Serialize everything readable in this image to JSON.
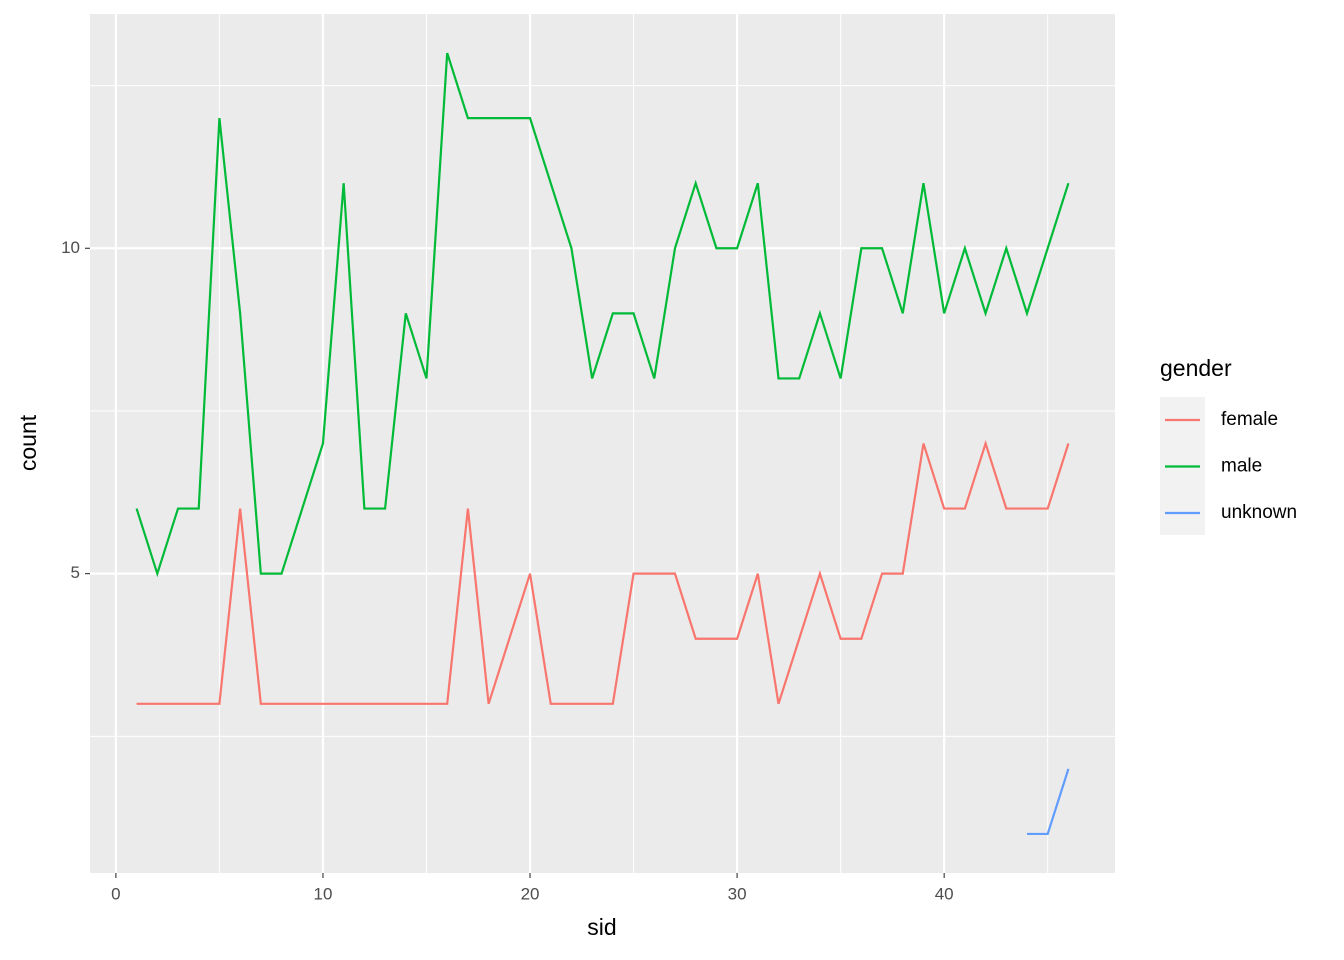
{
  "chart_data": {
    "type": "line",
    "x_label": "sid",
    "y_label": "count",
    "legend_title": "gender",
    "x": [
      1,
      2,
      3,
      4,
      5,
      6,
      7,
      8,
      9,
      10,
      11,
      12,
      13,
      14,
      15,
      16,
      17,
      18,
      19,
      20,
      21,
      22,
      23,
      24,
      25,
      26,
      27,
      28,
      29,
      30,
      31,
      32,
      33,
      34,
      35,
      36,
      37,
      38,
      39,
      40,
      41,
      42,
      43,
      44,
      45,
      46
    ],
    "series": [
      {
        "name": "female",
        "color": "#f8766d",
        "values": [
          3,
          3,
          3,
          3,
          3,
          6,
          3,
          3,
          3,
          3,
          3,
          3,
          3,
          3,
          3,
          3,
          6,
          3,
          4,
          5,
          3,
          3,
          3,
          3,
          5,
          5,
          5,
          4,
          4,
          4,
          5,
          3,
          4,
          5,
          4,
          4,
          5,
          5,
          7,
          6,
          6,
          7,
          6,
          6,
          6,
          7
        ]
      },
      {
        "name": "male",
        "color": "#00ba38",
        "values": [
          6,
          5,
          6,
          6,
          12,
          9,
          5,
          5,
          6,
          7,
          11,
          6,
          6,
          9,
          8,
          13,
          12,
          12,
          12,
          12,
          11,
          10,
          8,
          9,
          9,
          8,
          10,
          11,
          10,
          10,
          11,
          8,
          8,
          9,
          8,
          10,
          10,
          9,
          11,
          9,
          10,
          9,
          10,
          9,
          10,
          11
        ]
      },
      {
        "name": "unknown",
        "color": "#619cff",
        "values": [
          null,
          null,
          null,
          null,
          null,
          null,
          null,
          null,
          null,
          null,
          null,
          null,
          null,
          null,
          null,
          null,
          null,
          null,
          null,
          null,
          null,
          null,
          null,
          null,
          null,
          null,
          null,
          null,
          null,
          null,
          null,
          null,
          null,
          null,
          null,
          null,
          null,
          null,
          null,
          null,
          null,
          null,
          null,
          1,
          1,
          2
        ]
      }
    ],
    "xlim": [
      -1.25,
      48.25
    ],
    "ylim": [
      0.4,
      13.6
    ],
    "xticks": [
      0,
      10,
      20,
      30,
      40
    ],
    "yticks": [
      5,
      10
    ],
    "xminor": [
      5,
      15,
      25,
      35,
      45
    ],
    "yminor": [
      2.5,
      7.5,
      12.5
    ],
    "grid": true,
    "legend": "right"
  }
}
